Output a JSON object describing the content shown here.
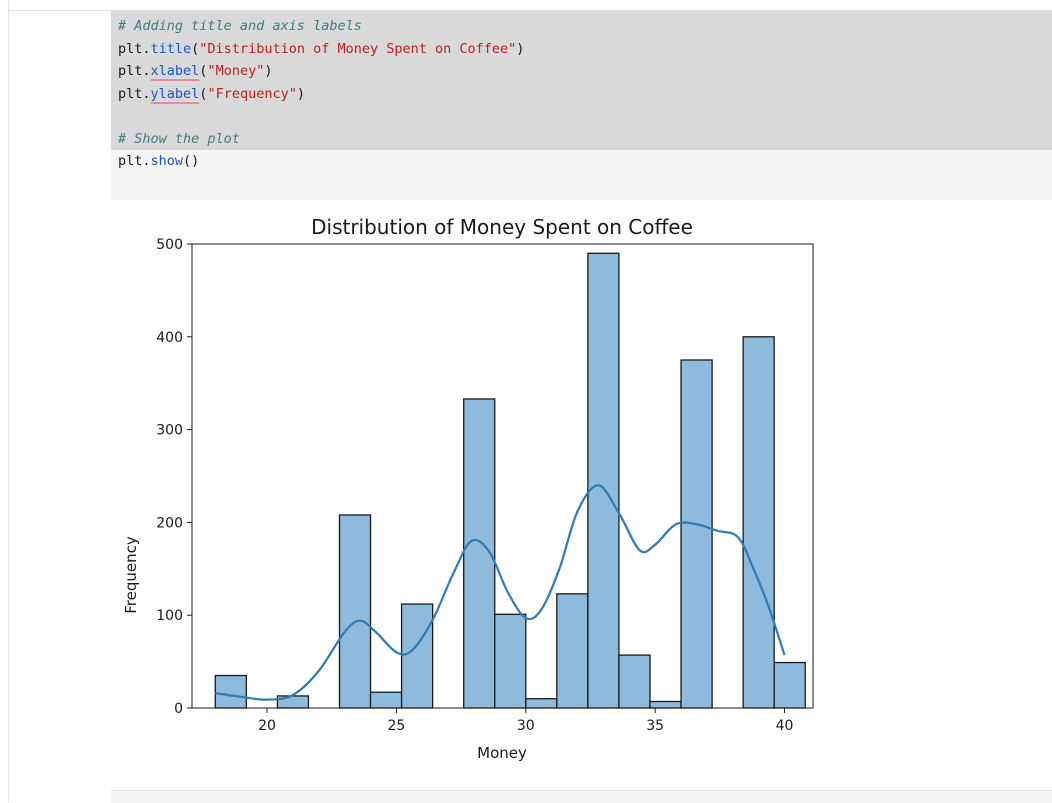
{
  "code_cell": {
    "lines": [
      {
        "type": "comment",
        "text": "# Adding title and axis labels"
      },
      {
        "type": "call",
        "obj": "plt.",
        "fn": "title",
        "open": "(",
        "arg": "\"Distribution of Money Spent on Coffee\"",
        "close": ")",
        "squiggle": false
      },
      {
        "type": "call",
        "obj": "plt.",
        "fn": "xlabel",
        "open": "(",
        "arg": "\"Money\"",
        "close": ")",
        "squiggle": true
      },
      {
        "type": "call",
        "obj": "plt.",
        "fn": "ylabel",
        "open": "(",
        "arg": "\"Frequency\"",
        "close": ")",
        "squiggle": true
      },
      {
        "type": "blank",
        "text": ""
      },
      {
        "type": "comment",
        "text": "# Show the plot"
      },
      {
        "type": "call",
        "obj": "plt.",
        "fn": "show",
        "open": "(",
        "arg": "",
        "close": ")",
        "squiggle": false
      }
    ]
  },
  "chart_data": {
    "type": "bar",
    "title": "Distribution of Money Spent on Coffee",
    "xlabel": "Money",
    "ylabel": "Frequency",
    "xlim": [
      17.1,
      41.1
    ],
    "ylim": [
      0,
      500
    ],
    "xticks": [
      20,
      25,
      30,
      35,
      40
    ],
    "yticks": [
      0,
      100,
      200,
      300,
      400,
      500
    ],
    "bar_color": "#8ebadc",
    "edge_color": "#1a1a1a",
    "kde_color": "#2e7bb5",
    "grid": false,
    "legend": "none",
    "bins": [
      {
        "x0": 18.0,
        "x1": 19.2,
        "count": 35
      },
      {
        "x0": 19.2,
        "x1": 20.4,
        "count": 0
      },
      {
        "x0": 20.4,
        "x1": 21.6,
        "count": 13
      },
      {
        "x0": 21.6,
        "x1": 22.8,
        "count": 0
      },
      {
        "x0": 22.8,
        "x1": 24.0,
        "count": 208
      },
      {
        "x0": 24.0,
        "x1": 25.2,
        "count": 17
      },
      {
        "x0": 25.2,
        "x1": 26.4,
        "count": 112
      },
      {
        "x0": 26.4,
        "x1": 27.6,
        "count": 0
      },
      {
        "x0": 27.6,
        "x1": 28.8,
        "count": 333
      },
      {
        "x0": 28.8,
        "x1": 30.0,
        "count": 101
      },
      {
        "x0": 30.0,
        "x1": 31.2,
        "count": 10
      },
      {
        "x0": 31.2,
        "x1": 32.4,
        "count": 123
      },
      {
        "x0": 32.4,
        "x1": 33.6,
        "count": 490
      },
      {
        "x0": 33.6,
        "x1": 34.8,
        "count": 57
      },
      {
        "x0": 34.8,
        "x1": 36.0,
        "count": 7
      },
      {
        "x0": 36.0,
        "x1": 37.2,
        "count": 375
      },
      {
        "x0": 37.2,
        "x1": 38.4,
        "count": 0
      },
      {
        "x0": 38.4,
        "x1": 39.6,
        "count": 400
      },
      {
        "x0": 39.6,
        "x1": 40.8,
        "count": 49
      }
    ],
    "kde": [
      [
        18.0,
        16
      ],
      [
        19.0,
        12
      ],
      [
        20.0,
        9
      ],
      [
        21.0,
        14
      ],
      [
        22.0,
        40
      ],
      [
        23.0,
        82
      ],
      [
        23.6,
        94
      ],
      [
        24.2,
        82
      ],
      [
        25.0,
        60
      ],
      [
        25.6,
        62
      ],
      [
        26.4,
        95
      ],
      [
        27.2,
        145
      ],
      [
        27.9,
        180
      ],
      [
        28.6,
        168
      ],
      [
        29.3,
        125
      ],
      [
        30.0,
        97
      ],
      [
        30.6,
        106
      ],
      [
        31.3,
        150
      ],
      [
        32.0,
        212
      ],
      [
        32.8,
        240
      ],
      [
        33.6,
        210
      ],
      [
        34.4,
        170
      ],
      [
        35.0,
        176
      ],
      [
        35.8,
        198
      ],
      [
        36.6,
        198
      ],
      [
        37.4,
        191
      ],
      [
        38.2,
        184
      ],
      [
        38.8,
        150
      ],
      [
        39.4,
        108
      ],
      [
        40.0,
        57
      ]
    ]
  }
}
